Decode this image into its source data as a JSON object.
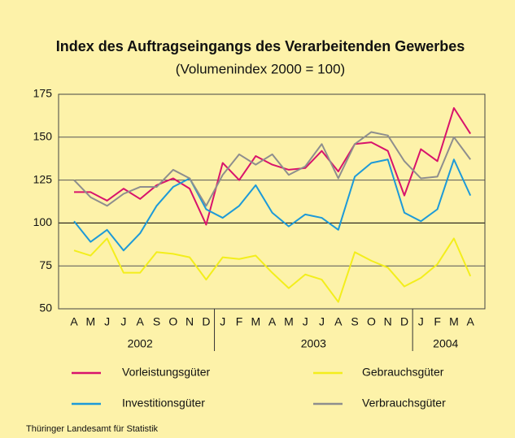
{
  "chart_data": {
    "type": "line",
    "title": "Index des Auftragseingangs des Verarbeitenden Gewerbes",
    "subtitle": "(Volumenindex 2000 = 100)",
    "category_groups": [
      {
        "label": "2002",
        "categories": [
          "A",
          "M",
          "J",
          "J",
          "A",
          "S",
          "O",
          "N",
          "D"
        ]
      },
      {
        "label": "2003",
        "categories": [
          "J",
          "F",
          "M",
          "A",
          "M",
          "J",
          "J",
          "A",
          "S",
          "O",
          "N",
          "D"
        ]
      },
      {
        "label": "2004",
        "categories": [
          "J",
          "F",
          "M",
          "A"
        ]
      }
    ],
    "series": [
      {
        "name": "Vorleistungsgüter",
        "color": "#d8136c",
        "values": [
          118,
          118,
          113,
          120,
          114,
          122,
          126,
          120,
          99,
          135,
          125,
          139,
          134,
          131,
          132,
          142,
          130,
          146,
          147,
          142,
          116,
          143,
          136,
          167,
          152
        ]
      },
      {
        "name": "Gebrauchsgüter",
        "color": "#f3ee1c",
        "values": [
          84,
          81,
          91,
          71,
          71,
          83,
          82,
          80,
          67,
          80,
          79,
          81,
          71,
          62,
          70,
          67,
          54,
          83,
          78,
          74,
          63,
          68,
          76,
          91,
          69
        ]
      },
      {
        "name": "Investitionsgüter",
        "color": "#1d9ad8",
        "values": [
          101,
          89,
          96,
          84,
          94,
          110,
          121,
          126,
          108,
          103,
          110,
          122,
          106,
          98,
          105,
          103,
          96,
          127,
          135,
          137,
          106,
          101,
          108,
          137,
          116
        ]
      },
      {
        "name": "Verbrauchsgüter",
        "color": "#8e8e8e",
        "values": [
          125,
          115,
          110,
          117,
          121,
          121,
          131,
          126,
          110,
          128,
          140,
          134,
          140,
          128,
          133,
          146,
          126,
          146,
          153,
          151,
          136,
          126,
          127,
          150,
          137
        ]
      }
    ],
    "ylim": [
      50,
      175
    ],
    "yticks": [
      50,
      75,
      100,
      125,
      150,
      175
    ],
    "grid": true,
    "source": "Thüringer Landesamt für Statistik"
  }
}
